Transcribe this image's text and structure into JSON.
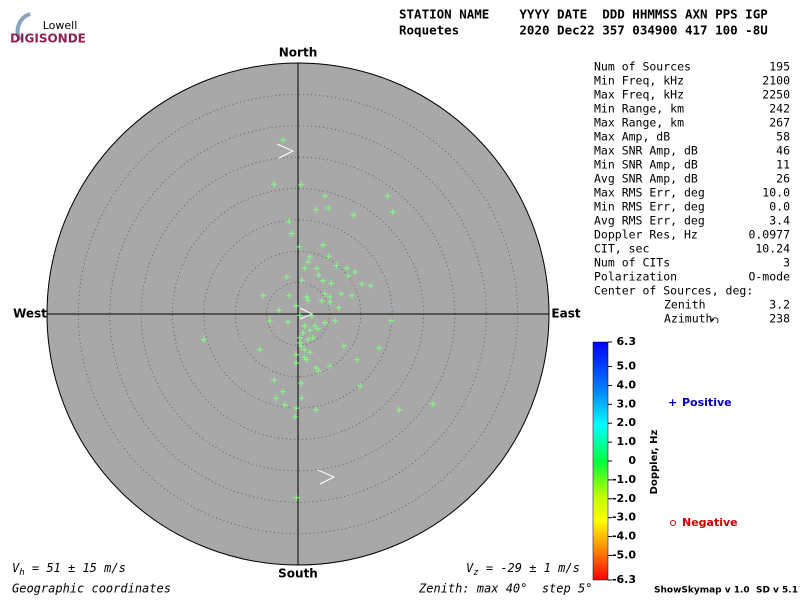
{
  "logo": {
    "top": "Lowell",
    "bottom": "DIGISONDE"
  },
  "header": {
    "line1": "STATION NAME    YYYY DATE  DDD HHMMSS AXN PPS IGP",
    "line2": "Roquetes        2020 Dec22 357 034900 417 100 -8U"
  },
  "stats": [
    {
      "label": "Num of Sources",
      "value": "195"
    },
    {
      "label": "Min Freq, kHz",
      "value": "2100"
    },
    {
      "label": "Max Freq, kHz",
      "value": "2250"
    },
    {
      "label": "Min Range, km",
      "value": "242"
    },
    {
      "label": "Max Range, km",
      "value": "267"
    },
    {
      "label": "Max Amp, dB",
      "value": "58"
    },
    {
      "label": "Max SNR Amp, dB",
      "value": "46"
    },
    {
      "label": "Min SNR Amp, dB",
      "value": "11"
    },
    {
      "label": "Avg SNR Amp, dB",
      "value": "26"
    },
    {
      "label": "Max RMS Err, deg",
      "value": "10.0"
    },
    {
      "label": "Min RMS Err, deg",
      "value": "0.0"
    },
    {
      "label": "Avg RMS Err, deg",
      "value": "3.4"
    },
    {
      "label": "Doppler Res, Hz",
      "value": "0.0977"
    },
    {
      "label": "CIT, sec",
      "value": "10.24"
    },
    {
      "label": "Num of CITs",
      "value": "3"
    },
    {
      "label": "Polarization",
      "value": "O-mode"
    },
    {
      "label": "Center of Sources, deg:"
    },
    {
      "label": "Zenith",
      "value": "3.2"
    },
    {
      "label": "Azimuth",
      "value": "238"
    }
  ],
  "colorbar": {
    "title": "Doppler, Hz",
    "lim": [
      -6.3,
      6.3
    ],
    "ticks": [
      6.3,
      {
        "value": 5,
        "label": "5.0"
      },
      {
        "value": 4,
        "label": "4.0"
      },
      {
        "value": 3,
        "label": "3.0"
      },
      {
        "value": 2,
        "label": "2.0"
      },
      {
        "value": 1,
        "label": "1.0"
      },
      0,
      {
        "value": -1,
        "label": "-1.0"
      },
      {
        "value": -2,
        "label": "-2.0"
      },
      {
        "value": -3,
        "label": "-3.0"
      },
      {
        "value": -4,
        "label": "-4.0"
      },
      {
        "value": -5,
        "label": "-5.0"
      },
      -6.3
    ]
  },
  "legend": {
    "positive": "Positive",
    "negative": "Negative"
  },
  "chart_data": {
    "type": "scatter",
    "polar": true,
    "rlim": 40,
    "rings": [
      5,
      10,
      15,
      20,
      25,
      30,
      35
    ],
    "directions": {
      "north": "North",
      "south": "South",
      "east": "East",
      "west": "West"
    },
    "color": "#80ff80",
    "x": [
      -2.4,
      -3.8,
      0.5,
      4.3,
      14.3,
      2.9,
      4.9,
      8.9,
      15.1,
      -1.4,
      -1.0,
      0.2,
      4.0,
      1.9,
      4.9,
      1.6,
      1.1,
      3.0,
      6.1,
      7.8,
      3.3,
      8.0,
      9.1,
      -1.8,
      0.6,
      4.0,
      5.3,
      10.2,
      11.6,
      -5.6,
      -1.4,
      1.4,
      4.3,
      6.9,
      8.6,
      1.6,
      5.1,
      6.5,
      -3.0,
      0.3,
      2.2,
      -4.5,
      -1.6,
      1.1,
      2.7,
      4.3,
      5.9,
      14.8,
      0.8,
      1.9,
      3.2,
      0.3,
      1.6,
      2.4,
      -15.0,
      0.5,
      7.3,
      -6.1,
      12.9,
      -0.3,
      1.0,
      1.4,
      -0.3,
      5.1,
      2.9,
      9.4,
      -3.8,
      0.5,
      9.9,
      -2.4,
      -3.5,
      0.6,
      -0.3,
      2.9,
      16.1,
      21.5,
      -0.2,
      -0.5,
      -2.1,
      3.3,
      3.8,
      5.1,
      -0.3,
      1.0,
      0.3,
      1.9
    ],
    "y": [
      27.7,
      20.7,
      20.6,
      18.8,
      18.8,
      16.6,
      16.9,
      15.8,
      16.3,
      14.8,
      12.8,
      10.7,
      11.0,
      9.1,
      9.2,
      8.3,
      7.3,
      7.3,
      7.7,
      7.3,
      6.2,
      6.1,
      6.7,
      5.9,
      5.4,
      5.3,
      4.9,
      4.8,
      4.5,
      2.9,
      2.9,
      2.7,
      3.2,
      3.2,
      2.9,
      2.2,
      1.9,
      1.0,
      0.6,
      -0.2,
      -0.3,
      -1.1,
      -1.3,
      -1.9,
      -1.9,
      -1.4,
      -1.1,
      -1.1,
      -3.0,
      -2.6,
      -2.4,
      -3.8,
      -4.1,
      -3.8,
      -4.1,
      -5.1,
      -5.1,
      -5.7,
      -5.4,
      -6.5,
      -6.9,
      -7.3,
      -7.8,
      -8.3,
      -8.6,
      -7.3,
      -10.5,
      -11.0,
      -11.5,
      -12.4,
      -13.4,
      -13.4,
      -15.0,
      -15.3,
      -15.3,
      -14.3,
      -29.3,
      -16.4,
      -14.5,
      -9.1,
      2.1,
      2.7,
      1.3,
      -5.7,
      -4.6,
      -6.1
    ]
  },
  "footer": {
    "vh_symbol": "V",
    "vh_sub": "h",
    "vh_text": " = 51 ± 15 m/s",
    "vz_symbol": "V",
    "vz_sub": "z",
    "vz_text": " = -29 ± 1 m/s",
    "coords": "Geographic coordinates",
    "zenith": "Zenith: max 40°  step 5°",
    "version": "ShowSkymap v 1.0  SD v 5.1"
  }
}
